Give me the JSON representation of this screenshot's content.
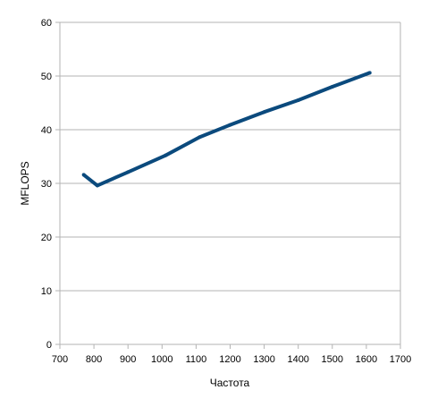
{
  "chart_data": {
    "type": "line",
    "title": "",
    "xlabel": "Частота",
    "ylabel": "MFLOPS",
    "xlim": [
      700,
      1700
    ],
    "ylim": [
      0,
      60
    ],
    "x_ticks": [
      "700",
      "800",
      "900",
      "1000",
      "1100",
      "1200",
      "1300",
      "1400",
      "1500",
      "1600",
      "1700"
    ],
    "y_ticks": [
      "0",
      "10",
      "20",
      "30",
      "40",
      "50",
      "60"
    ],
    "grid": "horizontal",
    "legend": "none",
    "series": [
      {
        "color": "#0b4a7d",
        "x": [
          770,
          810,
          900,
          1010,
          1110,
          1200,
          1300,
          1400,
          1500,
          1610
        ],
        "y": [
          31.6,
          29.6,
          32.1,
          35.2,
          38.6,
          40.9,
          43.3,
          45.5,
          48.0,
          50.6
        ]
      }
    ]
  }
}
